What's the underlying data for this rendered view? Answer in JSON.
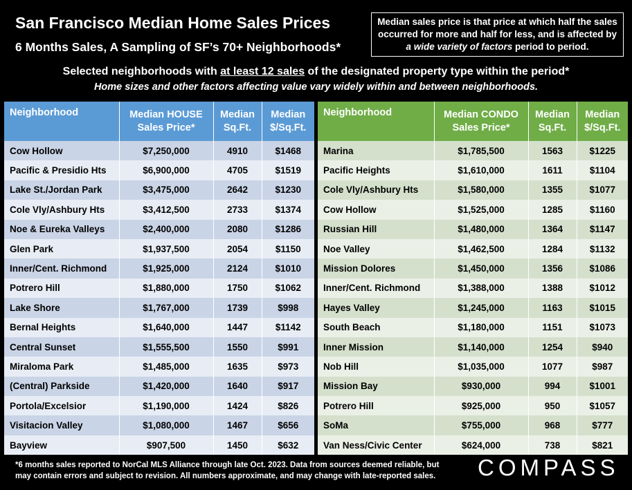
{
  "title": "San Francisco Median Home Sales Prices",
  "subtitle": "6 Months Sales, A Sampling of SF’s 70+ Neighborhoods*",
  "note": {
    "line1": "Median sales price is that price at which half the sales",
    "line2": "occurred for more and half for less, and is affected by",
    "line3_italic": "a wide variety of factors",
    "line3_rest": " period to period."
  },
  "selection": {
    "pre": "Selected neighborhoods with ",
    "underlined": "at least 12 sales",
    "post": " of the designated property type within the period*",
    "line2": "Home sizes and other factors affecting value vary widely within and between neighborhoods."
  },
  "footnote": {
    "line1": "*6 months sales reported to NorCal MLS Alliance through late Oct. 2023. Data from sources deemed reliable, but",
    "line2": "may contain errors and subject to revision. All numbers approximate, and may change with late-reported sales."
  },
  "logo": "COMPASS",
  "chart_data": [
    {
      "type": "table",
      "columns": [
        {
          "line1": "Neighborhood",
          "line2": ""
        },
        {
          "line1": "Median HOUSE",
          "line2": "Sales Price*"
        },
        {
          "line1": "Median",
          "line2": "Sq.Ft."
        },
        {
          "line1": "Median",
          "line2": "$/Sq.Ft."
        }
      ],
      "rows": [
        [
          "Cow Hollow",
          "$7,250,000",
          "4910",
          "$1468"
        ],
        [
          "Pacific & Presidio Hts",
          "$6,900,000",
          "4705",
          "$1519"
        ],
        [
          "Lake St./Jordan Park",
          "$3,475,000",
          "2642",
          "$1230"
        ],
        [
          "Cole Vly/Ashbury Hts",
          "$3,412,500",
          "2733",
          "$1374"
        ],
        [
          "Noe & Eureka Valleys",
          "$2,400,000",
          "2080",
          "$1286"
        ],
        [
          "Glen Park",
          "$1,937,500",
          "2054",
          "$1150"
        ],
        [
          "Inner/Cent. Richmond",
          "$1,925,000",
          "2124",
          "$1010"
        ],
        [
          "Potrero Hill",
          "$1,880,000",
          "1750",
          "$1062"
        ],
        [
          "Lake Shore",
          "$1,767,000",
          "1739",
          "$998"
        ],
        [
          "Bernal Heights",
          "$1,640,000",
          "1447",
          "$1142"
        ],
        [
          "Central Sunset",
          "$1,555,500",
          "1550",
          "$991"
        ],
        [
          "Miraloma Park",
          "$1,485,000",
          "1635",
          "$973"
        ],
        [
          "(Central) Parkside",
          "$1,420,000",
          "1640",
          "$917"
        ],
        [
          "Portola/Excelsior",
          "$1,190,000",
          "1424",
          "$826"
        ],
        [
          "Visitacion Valley",
          "$1,080,000",
          "1467",
          "$656"
        ],
        [
          "Bayview",
          "$907,500",
          "1450",
          "$632"
        ]
      ]
    },
    {
      "type": "table",
      "columns": [
        {
          "line1": "Neighborhood",
          "line2": ""
        },
        {
          "line1": "Median CONDO",
          "line2": "Sales Price*"
        },
        {
          "line1": "Median",
          "line2": "Sq.Ft."
        },
        {
          "line1": "Median",
          "line2": "$/Sq.Ft."
        }
      ],
      "rows": [
        [
          "Marina",
          "$1,785,500",
          "1563",
          "$1225"
        ],
        [
          "Pacific Heights",
          "$1,610,000",
          "1611",
          "$1104"
        ],
        [
          "Cole Vly/Ashbury Hts",
          "$1,580,000",
          "1355",
          "$1077"
        ],
        [
          "Cow Hollow",
          "$1,525,000",
          "1285",
          "$1160"
        ],
        [
          "Russian Hill",
          "$1,480,000",
          "1364",
          "$1147"
        ],
        [
          "Noe Valley",
          "$1,462,500",
          "1284",
          "$1132"
        ],
        [
          "Mission Dolores",
          "$1,450,000",
          "1356",
          "$1086"
        ],
        [
          "Inner/Cent. Richmond",
          "$1,388,000",
          "1388",
          "$1012"
        ],
        [
          "Hayes Valley",
          "$1,245,000",
          "1163",
          "$1015"
        ],
        [
          "South Beach",
          "$1,180,000",
          "1151",
          "$1073"
        ],
        [
          "Inner Mission",
          "$1,140,000",
          "1254",
          "$940"
        ],
        [
          "Nob Hill",
          "$1,035,000",
          "1077",
          "$987"
        ],
        [
          "Mission Bay",
          "$930,000",
          "994",
          "$1001"
        ],
        [
          "Potrero Hill",
          "$925,000",
          "950",
          "$1057"
        ],
        [
          "SoMa",
          "$755,000",
          "968",
          "$777"
        ],
        [
          "Van Ness/Civic Center",
          "$624,000",
          "738",
          "$821"
        ]
      ]
    }
  ]
}
